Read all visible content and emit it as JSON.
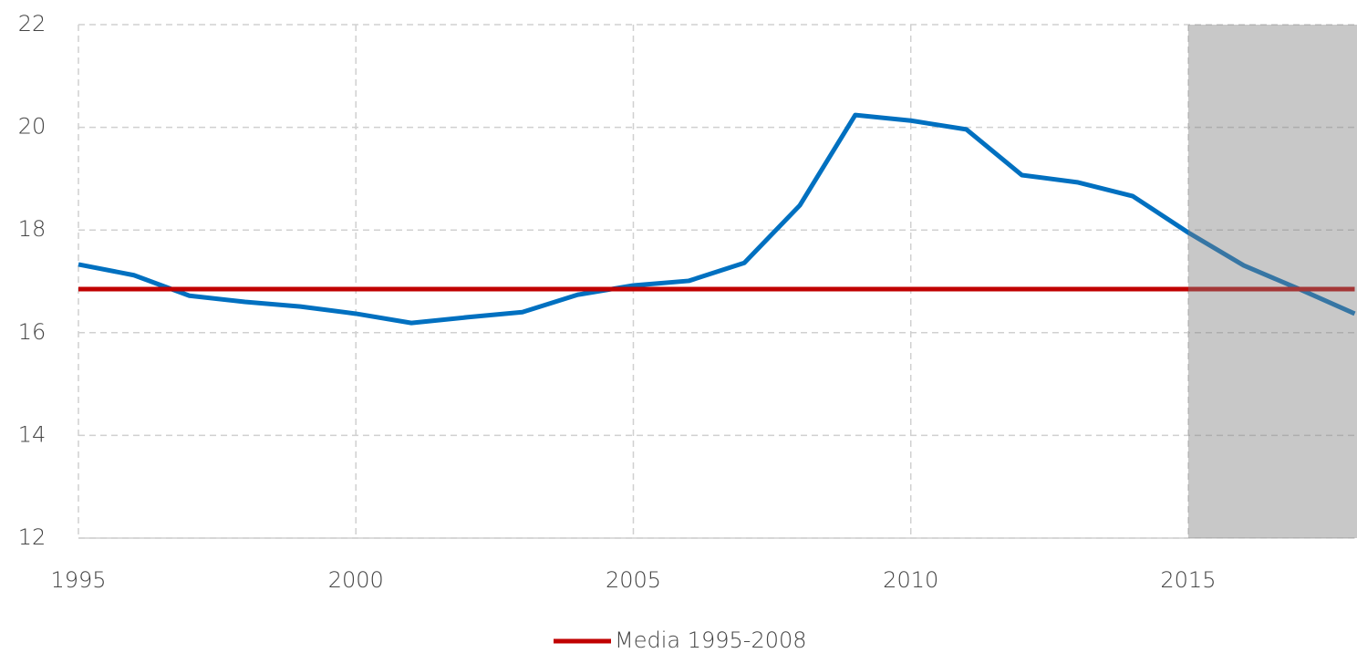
{
  "chart_data": {
    "type": "line",
    "x": [
      1995,
      1996,
      1997,
      1998,
      1999,
      2000,
      2001,
      2002,
      2003,
      2004,
      2005,
      2006,
      2007,
      2008,
      2009,
      2010,
      2011,
      2012,
      2013,
      2014,
      2015,
      2016,
      2017,
      2018
    ],
    "series": [
      {
        "color": "#0070c0",
        "values": [
          17.33,
          17.12,
          16.72,
          16.6,
          16.51,
          16.37,
          16.19,
          16.3,
          16.4,
          16.74,
          16.92,
          17.01,
          17.36,
          18.48,
          20.24,
          20.13,
          19.96,
          19.07,
          18.93,
          18.66,
          17.95,
          17.31,
          16.85,
          16.37
        ]
      },
      {
        "name": "Media 1995-2008",
        "color": "#c00000",
        "x": [
          1995,
          2018
        ],
        "values": [
          16.85,
          16.85
        ]
      }
    ],
    "shaded_span": [
      2015,
      2018
    ],
    "shade_color": "#808080",
    "xlim": [
      1995,
      2018
    ],
    "xticks": [
      1995,
      2000,
      2005,
      2010,
      2015
    ],
    "ylim": [
      12,
      22
    ],
    "yticks": [
      12,
      14,
      16,
      18,
      20,
      22
    ],
    "grid": true
  }
}
